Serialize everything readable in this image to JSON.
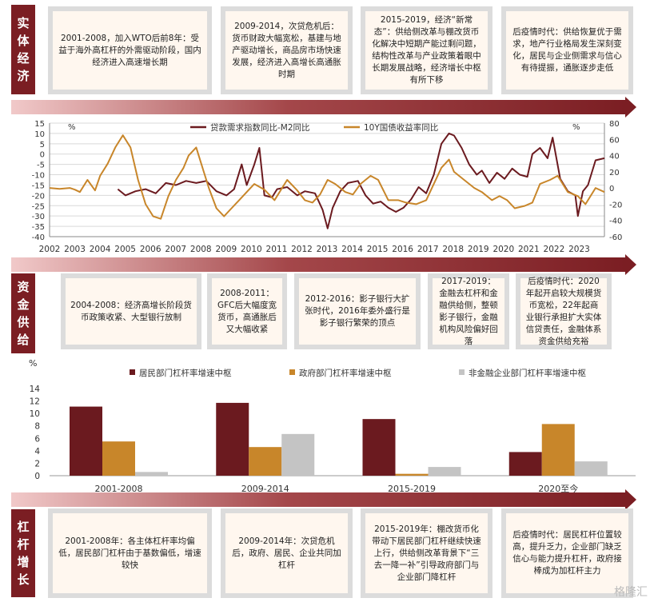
{
  "sections": {
    "economy": {
      "tag": "实体经济",
      "cards": [
        "2001-2008，加入WTO后前8年：受益于海外高杠杆的外需驱动阶段，国内经济进入高速增长期",
        "2009-2014，次贷危机后：货币财政大幅宽松，基建与地产驱动增长，商品房市场快速发展，经济进入高增长高通胀时期",
        "2015-2019，经济“新常态”：供给侧改革与棚改货币化解决中短期产能过剩问题，结构性改革与产业政策着眼中长期发展战略，经济增长中枢有所下移",
        "后疫情时代：供给恢复优于需求，地产行业格局发生深刻变化，居民与企业侧需求与信心有待提振，通胀逐步走低"
      ]
    },
    "funding": {
      "tag": "资金供给",
      "cards": [
        "2004-2008：经济高增长阶段货币政策收紧、大型银行放制",
        "2008-2011：GFC后大幅度宽货币，高通胀后又大幅收紧",
        "2012-2016：影子银行大扩张时代，2016年委外盛行是影子银行繁荣的顶点",
        "2017-2019：金融去杠杆和金融供给侧，整顿影子银行，金融机构风险偏好回落",
        "后疫情时代：2020年起开启较大规模货币宽松，22年起商业银行承担扩大实体信贷责任，金融体系资金供给充裕"
      ]
    },
    "leverage": {
      "tag": "杠杆增长",
      "cards": [
        "2001-2008年：各主体杠杆率均偏低，居民部门杠杆由于基数偏低，增速较快",
        "2009-2014年：次贷危机后，政府、居民、企业共同加杠杆",
        "2015-2019年：棚改货币化带动下居民部门杠杆继续快速上行，供给侧改革背景下“三去一降一补”引导政府部门与企业部门降杠杆",
        "后疫情时代：居民杠杆位置较高，提升乏力，企业部门缺乏信心与能力提升杠杆，政府接棒成为加杠杆主力"
      ]
    }
  },
  "chart_data": [
    {
      "type": "line",
      "title": "",
      "left_unit": "%",
      "right_unit": "%",
      "y_left_lim": [
        -40,
        15
      ],
      "y_left_ticks": [
        15,
        10,
        5,
        0,
        -5,
        -10,
        -15,
        -20,
        -25,
        -30,
        -35,
        -40
      ],
      "y_right_lim": [
        -60,
        80
      ],
      "y_right_ticks": [
        80,
        60,
        40,
        20,
        0,
        -20,
        -40,
        -60
      ],
      "x_range": [
        2002.0,
        2023.95
      ],
      "x_tick_labels": [
        "2002",
        "2003",
        "2004",
        "2005",
        "2006",
        "2007",
        "2008",
        "2009",
        "2010",
        "2011",
        "2012",
        "2013",
        "2014",
        "2015",
        "2016",
        "2017",
        "2018",
        "2019",
        "2020",
        "2021",
        "2022",
        "2023"
      ],
      "grid": true,
      "legend_position": "top",
      "series": [
        {
          "name": "贷款需求指数同比-M2同比",
          "axis": "left",
          "color": "#6b1a1f",
          "x": [
            2004.7,
            2005.0,
            2005.4,
            2005.8,
            2006.2,
            2006.6,
            2007.0,
            2007.4,
            2007.8,
            2008.2,
            2008.6,
            2009.0,
            2009.3,
            2009.6,
            2009.8,
            2010.1,
            2010.3,
            2010.5,
            2010.8,
            2011.0,
            2011.4,
            2011.8,
            2012.1,
            2012.5,
            2012.8,
            2013.0,
            2013.2,
            2013.5,
            2013.8,
            2014.2,
            2014.5,
            2014.8,
            2015.1,
            2015.4,
            2015.7,
            2016.0,
            2016.3,
            2016.6,
            2016.9,
            2017.2,
            2017.5,
            2017.8,
            2018.0,
            2018.3,
            2018.6,
            2018.9,
            2019.1,
            2019.4,
            2019.7,
            2020.0,
            2020.3,
            2020.6,
            2020.9,
            2021.1,
            2021.4,
            2021.7,
            2021.9,
            2022.2,
            2022.5,
            2022.8,
            2022.9,
            2023.1,
            2023.3,
            2023.6,
            2023.95
          ],
          "y": [
            -17,
            -20,
            -18,
            -17,
            -19,
            -14,
            -15,
            -13,
            -14,
            -13,
            -18,
            -20,
            -17,
            -5,
            -15,
            -5,
            3,
            -20,
            -21,
            -17,
            -16,
            -20,
            -18,
            -19,
            -27,
            -36,
            -26,
            -18,
            -14,
            -13,
            -20,
            -24,
            -23,
            -26,
            -28,
            -26,
            -22,
            -16,
            -19,
            -10,
            5,
            10,
            9,
            3,
            -5,
            -10,
            -8,
            -14,
            -9,
            -12,
            -7,
            -10,
            -11,
            0,
            3,
            -2,
            8,
            -12,
            -18,
            -20,
            -30,
            -18,
            -15,
            -3,
            -2
          ]
        },
        {
          "name": "10Y国债收益率同比",
          "axis": "right",
          "color": "#c8862a",
          "x": [
            2002.0,
            2002.4,
            2002.8,
            2003.0,
            2003.2,
            2003.5,
            2003.8,
            2004.0,
            2004.3,
            2004.6,
            2004.9,
            2005.2,
            2005.5,
            2005.8,
            2006.1,
            2006.4,
            2006.7,
            2007.0,
            2007.3,
            2007.5,
            2007.8,
            2008.0,
            2008.3,
            2008.6,
            2008.9,
            2009.2,
            2009.5,
            2009.8,
            2010.1,
            2010.5,
            2010.9,
            2011.1,
            2011.4,
            2011.8,
            2012.1,
            2012.4,
            2012.7,
            2013.0,
            2013.3,
            2013.7,
            2014.0,
            2014.3,
            2014.7,
            2015.0,
            2015.4,
            2015.8,
            2016.1,
            2016.5,
            2016.9,
            2017.2,
            2017.5,
            2017.8,
            2018.0,
            2018.4,
            2018.8,
            2019.1,
            2019.5,
            2019.8,
            2020.1,
            2020.4,
            2020.8,
            2021.1,
            2021.4,
            2021.8,
            2022.1,
            2022.5,
            2022.9,
            2023.2,
            2023.6,
            2023.95
          ],
          "y": [
            0,
            -1,
            0,
            -2,
            -5,
            10,
            -3,
            15,
            30,
            50,
            65,
            50,
            10,
            -20,
            -35,
            -38,
            -10,
            10,
            25,
            40,
            50,
            30,
            0,
            -25,
            -35,
            -25,
            -15,
            -5,
            5,
            -2,
            -15,
            -5,
            10,
            -3,
            -15,
            -18,
            -8,
            10,
            5,
            -5,
            -8,
            5,
            15,
            10,
            -15,
            -15,
            -18,
            -20,
            -15,
            5,
            25,
            35,
            20,
            10,
            0,
            -5,
            -15,
            -10,
            -15,
            -25,
            -22,
            -18,
            5,
            10,
            15,
            -5,
            -10,
            -20,
            0,
            -5
          ]
        }
      ]
    },
    {
      "type": "bar",
      "title": "",
      "ylabel": "%",
      "ylim": [
        0,
        14
      ],
      "y_ticks": [
        0,
        2,
        4,
        6,
        8,
        10,
        12,
        14
      ],
      "categories": [
        "2001-2008",
        "2009-2014",
        "2015-2019",
        "2020至今"
      ],
      "legend_position": "top",
      "series": [
        {
          "name": "居民部门杠杆率增速中枢",
          "color": "#6b1a1f",
          "values": [
            11.1,
            11.7,
            9.1,
            3.8
          ]
        },
        {
          "name": "政府部门杠杆率增速中枢",
          "color": "#c8862a",
          "values": [
            5.5,
            4.6,
            0.3,
            8.3
          ]
        },
        {
          "name": "非金融企业部门杠杆率增速中枢",
          "color": "#c4c4c4",
          "values": [
            0.6,
            6.7,
            1.4,
            2.3
          ]
        }
      ]
    }
  ],
  "watermark": "格隆汇"
}
